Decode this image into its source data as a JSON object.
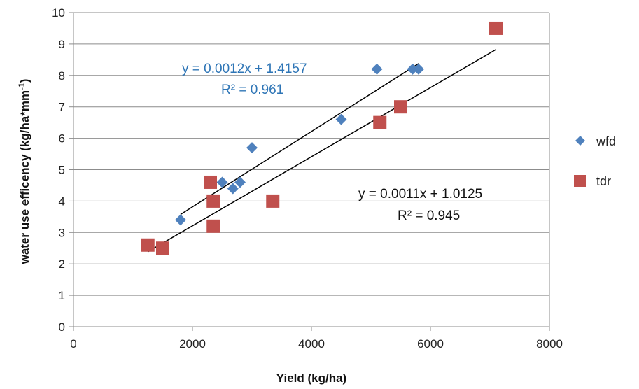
{
  "chart_data": {
    "type": "scatter",
    "xlabel": "Yield (kg/ha)",
    "ylabel_main": "water use efficency (kg/ha*mm",
    "ylabel_sup": "-1",
    "ylabel_close": ")",
    "xlim": [
      0,
      8000
    ],
    "ylim": [
      0,
      10
    ],
    "xticks": [
      0,
      2000,
      4000,
      6000,
      8000
    ],
    "yticks": [
      0,
      1,
      2,
      3,
      4,
      5,
      6,
      7,
      8,
      9,
      10
    ],
    "grid": "horizontal",
    "legend_position": "right",
    "series": [
      {
        "name": "wfd",
        "marker": "diamond",
        "color": "#4f81bd",
        "points": [
          {
            "x": 1800,
            "y": 3.4
          },
          {
            "x": 2500,
            "y": 4.6
          },
          {
            "x": 2680,
            "y": 4.4
          },
          {
            "x": 2800,
            "y": 4.6
          },
          {
            "x": 3000,
            "y": 5.7
          },
          {
            "x": 4500,
            "y": 6.6
          },
          {
            "x": 5100,
            "y": 8.2
          },
          {
            "x": 5700,
            "y": 8.2
          },
          {
            "x": 5800,
            "y": 8.2
          }
        ],
        "trendline": {
          "slope": 0.0012,
          "intercept": 1.4157,
          "x_range": [
            1800,
            5800
          ],
          "color": "#000000"
        },
        "equation": "y = 0.0012x + 1.4157",
        "r2": "R² = 0.961",
        "label_color": "#2e75b6"
      },
      {
        "name": "tdr",
        "marker": "square",
        "color": "#c0504d",
        "points": [
          {
            "x": 1250,
            "y": 2.6
          },
          {
            "x": 1500,
            "y": 2.5
          },
          {
            "x": 2300,
            "y": 4.6
          },
          {
            "x": 2350,
            "y": 4.0
          },
          {
            "x": 2350,
            "y": 3.2
          },
          {
            "x": 3350,
            "y": 4.0
          },
          {
            "x": 5150,
            "y": 6.5
          },
          {
            "x": 5500,
            "y": 7.0
          },
          {
            "x": 7100,
            "y": 9.5
          }
        ],
        "trendline": {
          "slope": 0.0011,
          "intercept": 1.0125,
          "x_range": [
            1250,
            7100
          ],
          "color": "#000000"
        },
        "equation": "y = 0.0011x + 1.0125",
        "r2": "R² = 0.945",
        "label_color": "#111111"
      }
    ]
  }
}
